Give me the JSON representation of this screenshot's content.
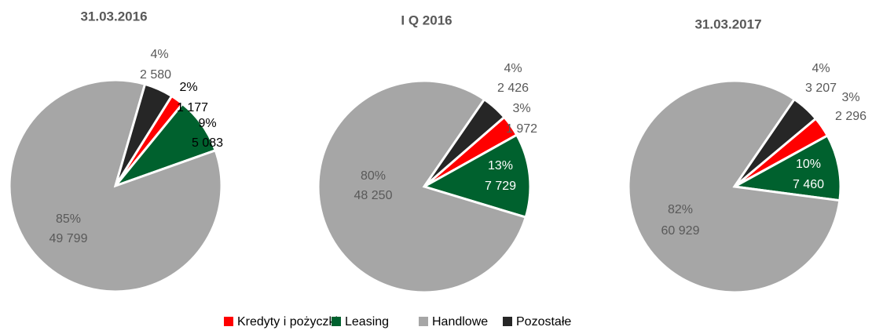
{
  "chart_data": [
    {
      "type": "pie",
      "title": "31.03.2016",
      "categories": [
        "Kredyty i pożyczki",
        "Leasing",
        "Handlowe",
        "Pozostałe"
      ],
      "colors": [
        "#ff0000",
        "#00612e",
        "#a6a6a6",
        "#262626"
      ],
      "values": [
        1177,
        5083,
        49799,
        2580
      ],
      "value_labels": [
        "1 177",
        "5 083",
        "49 799",
        "2 580"
      ],
      "percent_labels": [
        "2%",
        "9%",
        "85%",
        "4%"
      ]
    },
    {
      "type": "pie",
      "title": "I Q 2016",
      "categories": [
        "Kredyty i pożyczki",
        "Leasing",
        "Handlowe",
        "Pozostałe"
      ],
      "colors": [
        "#ff0000",
        "#00612e",
        "#a6a6a6",
        "#262626"
      ],
      "values": [
        1972,
        7729,
        48250,
        2426
      ],
      "value_labels": [
        "1 972",
        "7 729",
        "48 250",
        "2 426"
      ],
      "percent_labels": [
        "3%",
        "13%",
        "80%",
        "4%"
      ]
    },
    {
      "type": "pie",
      "title": "31.03.2017",
      "categories": [
        "Kredyty i pożyczki",
        "Leasing",
        "Handlowe",
        "Pozostałe"
      ],
      "colors": [
        "#ff0000",
        "#00612e",
        "#a6a6a6",
        "#262626"
      ],
      "values": [
        2296,
        7460,
        60929,
        3207
      ],
      "value_labels": [
        "2 296",
        "7 460",
        "60 929",
        "3 207"
      ],
      "percent_labels": [
        "3%",
        "10%",
        "82%",
        "4%"
      ]
    }
  ]
}
